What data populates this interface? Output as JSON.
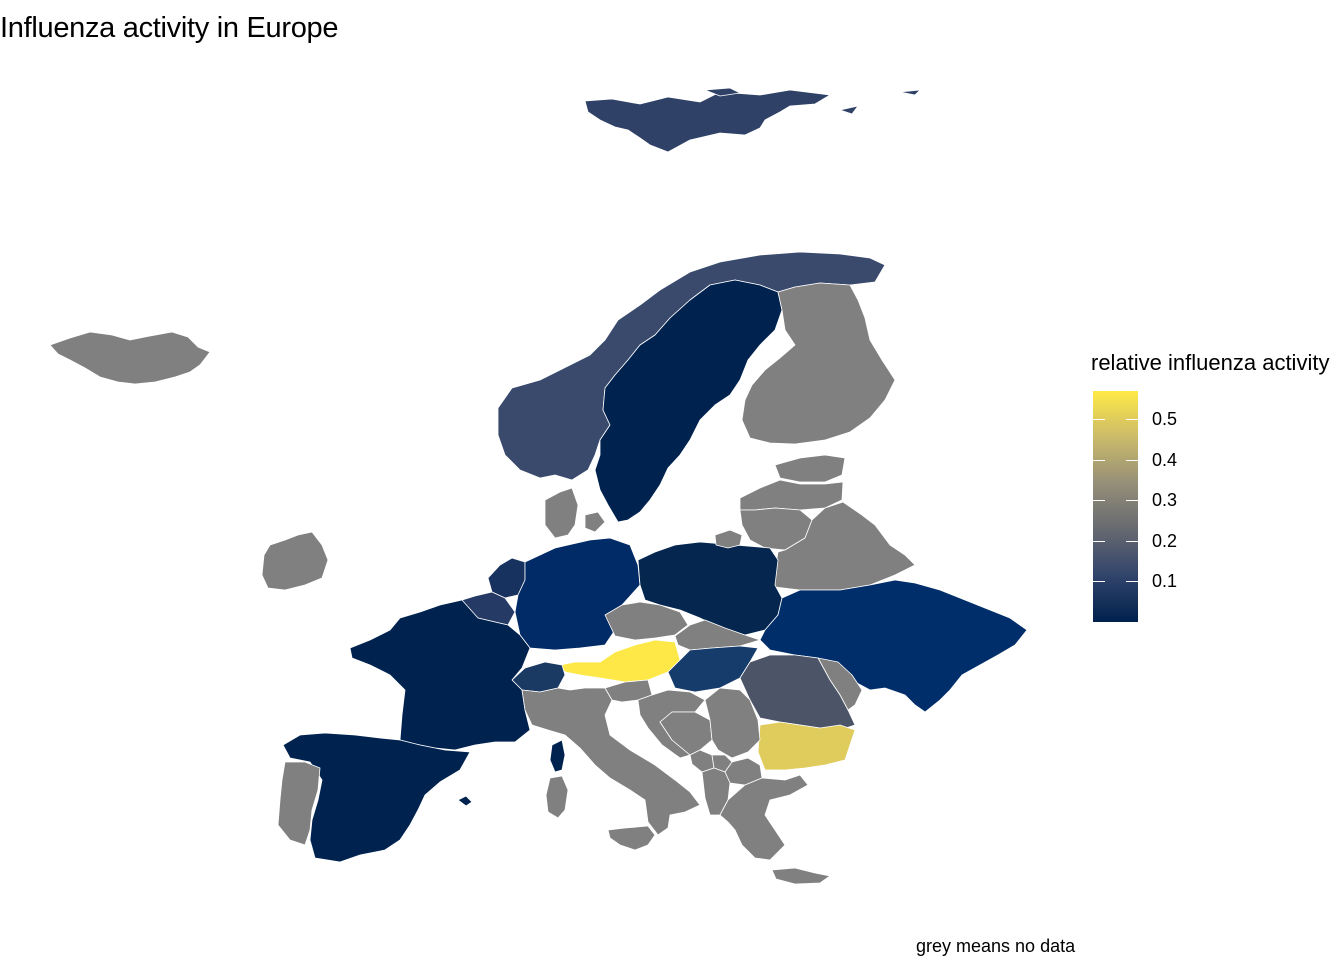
{
  "title": "Influenza activity in Europe",
  "caption": "grey means no data",
  "legend": {
    "title": "relative influenza activity",
    "ticks": [
      "0.5",
      "0.4",
      "0.3",
      "0.2",
      "0.1"
    ],
    "tick_values": [
      0.5,
      0.4,
      0.3,
      0.2,
      0.1
    ],
    "range": [
      0.0,
      0.57
    ],
    "palette": [
      "#00204d",
      "#31446b",
      "#666970",
      "#958f78",
      "#cbba69",
      "#ffea46"
    ]
  },
  "colors": {
    "no_data": "#808080",
    "background": "#ffffff",
    "border": "#ffffff"
  },
  "regions": [
    {
      "name": "Svalbard",
      "status": "value",
      "color": "#2f4166"
    },
    {
      "name": "Norway",
      "status": "value",
      "color": "#394a6c"
    },
    {
      "name": "Sweden",
      "status": "value",
      "color": "#00224f"
    },
    {
      "name": "Finland",
      "status": "no-data",
      "color": "#808080"
    },
    {
      "name": "Iceland",
      "status": "no-data",
      "color": "#808080"
    },
    {
      "name": "Ireland",
      "status": "no-data",
      "color": "#808080"
    },
    {
      "name": "Denmark",
      "status": "no-data",
      "color": "#808080"
    },
    {
      "name": "Estonia",
      "status": "no-data",
      "color": "#808080"
    },
    {
      "name": "Latvia",
      "status": "no-data",
      "color": "#808080"
    },
    {
      "name": "Lithuania",
      "status": "no-data",
      "color": "#808080"
    },
    {
      "name": "Belarus",
      "status": "no-data",
      "color": "#808080"
    },
    {
      "name": "Netherlands",
      "status": "value",
      "color": "#17325e"
    },
    {
      "name": "Belgium",
      "status": "value",
      "color": "#253b66"
    },
    {
      "name": "Germany",
      "status": "value",
      "color": "#002b66"
    },
    {
      "name": "Poland",
      "status": "value",
      "color": "#04264f"
    },
    {
      "name": "Czechia",
      "status": "no-data",
      "color": "#808080"
    },
    {
      "name": "Slovakia",
      "status": "no-data",
      "color": "#808080"
    },
    {
      "name": "Austria",
      "status": "value",
      "color": "#fde848"
    },
    {
      "name": "Switzerland",
      "status": "value",
      "color": "#1b3a63"
    },
    {
      "name": "Hungary",
      "status": "value",
      "color": "#163c6c"
    },
    {
      "name": "Ukraine",
      "status": "value",
      "color": "#002e6a"
    },
    {
      "name": "Moldova",
      "status": "no-data",
      "color": "#808080"
    },
    {
      "name": "Romania",
      "status": "value",
      "color": "#4c5468"
    },
    {
      "name": "Bulgaria",
      "status": "value",
      "color": "#e0cc5c"
    },
    {
      "name": "France",
      "status": "value",
      "color": "#00224f"
    },
    {
      "name": "Spain",
      "status": "value",
      "color": "#00224f"
    },
    {
      "name": "Portugal",
      "status": "no-data",
      "color": "#808080"
    },
    {
      "name": "Italy",
      "status": "no-data",
      "color": "#808080"
    },
    {
      "name": "Slovenia",
      "status": "no-data",
      "color": "#808080"
    },
    {
      "name": "Croatia",
      "status": "no-data",
      "color": "#808080"
    },
    {
      "name": "Bosnia",
      "status": "no-data",
      "color": "#808080"
    },
    {
      "name": "Serbia",
      "status": "no-data",
      "color": "#808080"
    },
    {
      "name": "Montenegro",
      "status": "no-data",
      "color": "#808080"
    },
    {
      "name": "Kosovo",
      "status": "no-data",
      "color": "#808080"
    },
    {
      "name": "North Macedonia",
      "status": "no-data",
      "color": "#808080"
    },
    {
      "name": "Albania",
      "status": "no-data",
      "color": "#808080"
    },
    {
      "name": "Greece",
      "status": "no-data",
      "color": "#808080"
    },
    {
      "name": "Sardinia",
      "status": "no-data",
      "color": "#808080"
    },
    {
      "name": "Corsica",
      "status": "value",
      "color": "#00224f"
    },
    {
      "name": "Sicily",
      "status": "no-data",
      "color": "#808080"
    },
    {
      "name": "Balearic Islands",
      "status": "value",
      "color": "#00224f"
    },
    {
      "name": "Crete",
      "status": "no-data",
      "color": "#808080"
    },
    {
      "name": "Kaliningrad",
      "status": "no-data",
      "color": "#808080"
    }
  ]
}
